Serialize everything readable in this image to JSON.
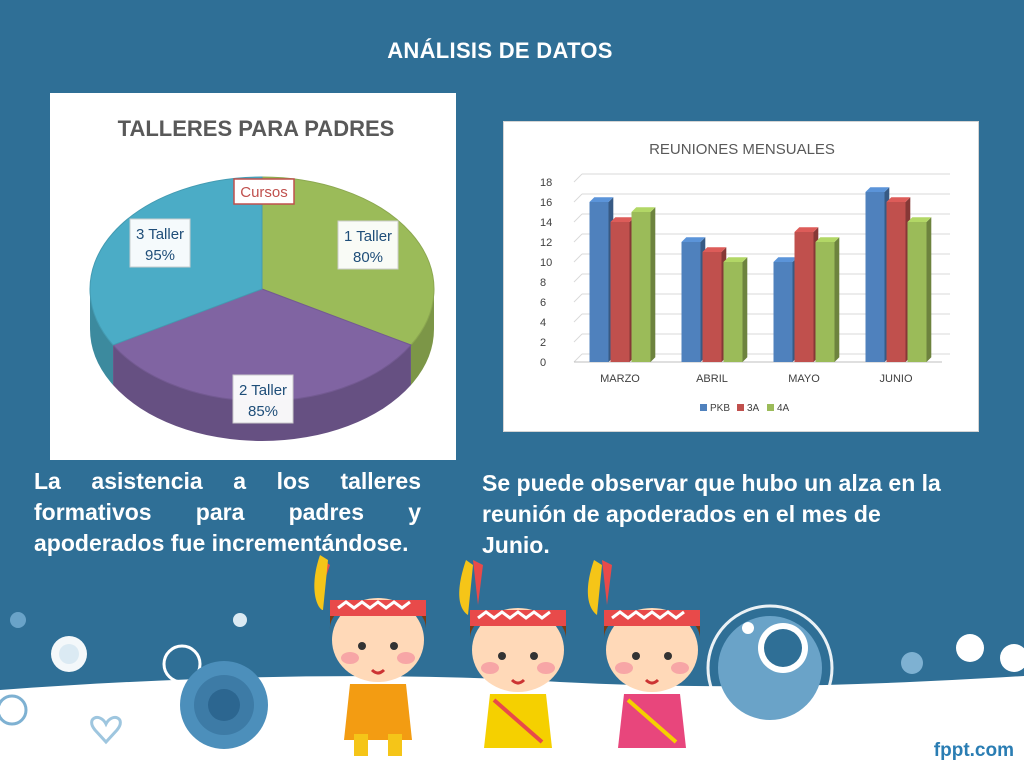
{
  "slide": {
    "title": "ANÁLISIS DE DATOS",
    "caption_left": "La asistencia a los talleres formativos para padres y apoderados fue incrementándose.",
    "caption_right": "Se puede observar que hubo un alza en la reunión de apoderados en el mes de Junio.",
    "brand": "fppt.com",
    "colors": {
      "background": "#2f6f96",
      "text": "#ffffff"
    }
  },
  "chart_data": [
    {
      "type": "pie",
      "title": "TALLERES PARA PADRES",
      "legend_box": "Cursos",
      "slices": [
        {
          "label": "1 Taller",
          "value_label": "80%",
          "value": 80,
          "color": "#9bbb59"
        },
        {
          "label": "2 Taller",
          "value_label": "85%",
          "value": 85,
          "color": "#8064a2"
        },
        {
          "label": "3 Taller",
          "value_label": "95%",
          "value": 95,
          "color": "#4bacc6"
        }
      ]
    },
    {
      "type": "bar",
      "title": "REUNIONES MENSUALES",
      "categories": [
        "MARZO",
        "ABRIL",
        "MAYO",
        "JUNIO"
      ],
      "series": [
        {
          "name": "PKB",
          "values": [
            16,
            12,
            10,
            17
          ],
          "color": "#4f81bd"
        },
        {
          "name": "3A",
          "values": [
            14,
            11,
            13,
            16
          ],
          "color": "#c0504d"
        },
        {
          "name": "4A",
          "values": [
            15,
            10,
            12,
            14
          ],
          "color": "#9bbb59"
        }
      ],
      "ylim": [
        0,
        18
      ],
      "yticks": [
        "0",
        "2",
        "4",
        "6",
        "8",
        "10",
        "12",
        "14",
        "16",
        "18"
      ],
      "grid": true,
      "legend": "bottom"
    }
  ]
}
